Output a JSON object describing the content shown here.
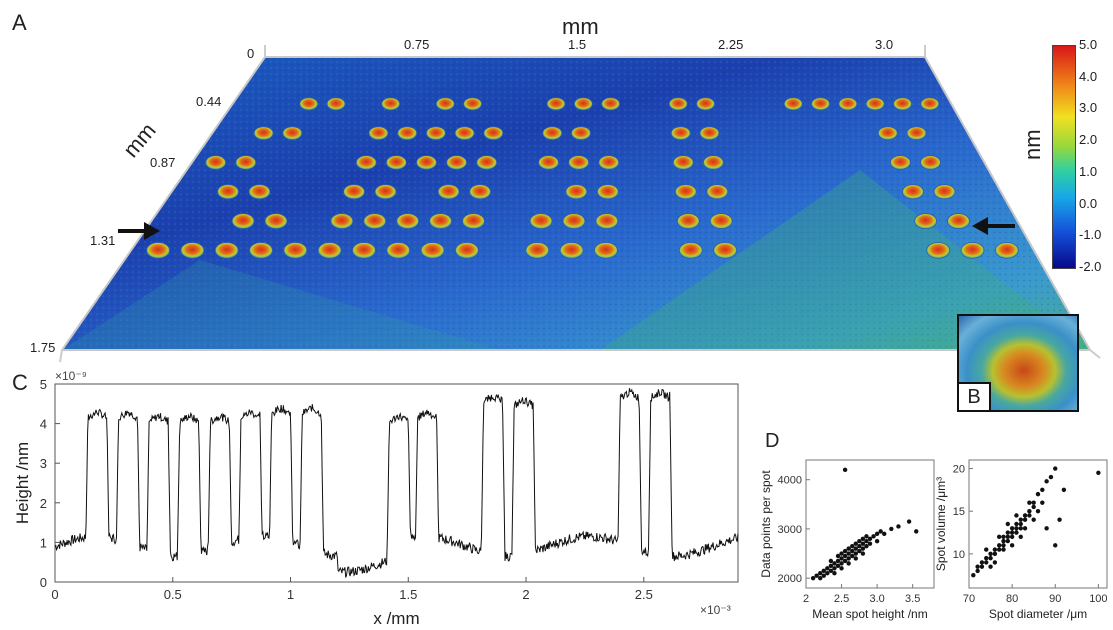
{
  "panels": {
    "A": {
      "letter": "A",
      "x_unit": "mm",
      "y_unit": "mm",
      "x_ticks": [
        "0",
        "0.75",
        "1.5",
        "2.25",
        "3.0"
      ],
      "y_ticks": [
        "0.44",
        "0.87",
        "1.31",
        "1.75"
      ],
      "colorbar": {
        "label": "nm",
        "ticks": [
          "5.0",
          "4.0",
          "3.0",
          "2.0",
          "1.0",
          "0.0",
          "-1.0",
          "-2.0"
        ],
        "range": [
          -2.0,
          5.0
        ],
        "colors": [
          "#08088a",
          "#1450d8",
          "#18a8e8",
          "#30d0a0",
          "#9ad83a",
          "#f0e020",
          "#f08818",
          "#d81818"
        ]
      },
      "arrows": [
        "left-arrow",
        "right-arrow"
      ]
    },
    "B": {
      "letter": "B"
    },
    "C": {
      "letter": "C",
      "y_exponent": "×10⁻⁹",
      "x_exponent": "×10⁻³",
      "xlabel": "x /mm",
      "ylabel": "Height /nm",
      "x_ticks": [
        "0",
        "0.5",
        "1",
        "1.5",
        "2",
        "2.5"
      ],
      "y_ticks": [
        "0",
        "1",
        "2",
        "3",
        "4",
        "5"
      ]
    },
    "D": {
      "letter": "D",
      "left": {
        "xlabel": "Mean spot height /nm",
        "ylabel": "Data points per spot",
        "x_ticks": [
          "2",
          "2.5",
          "3.0",
          "3.5"
        ],
        "y_ticks": [
          "2000",
          "3000",
          "4000"
        ]
      },
      "right": {
        "xlabel": "Spot diameter /μm",
        "ylabel": "Spot volume /μm³",
        "x_ticks": [
          "70",
          "80",
          "90",
          "100"
        ],
        "y_ticks": [
          "10",
          "15",
          "20"
        ]
      }
    }
  },
  "chart_data": [
    {
      "type": "line",
      "title": "",
      "xlabel": "x /mm",
      "ylabel": "Height /nm",
      "xlim": [
        0,
        2.9
      ],
      "ylim": [
        0,
        5
      ],
      "x_scale_label": "×10⁻³",
      "y_scale_label": "×10⁻⁹",
      "grid": false,
      "peaks": [
        {
          "center": 0.18,
          "width": 0.08,
          "height": 4.3
        },
        {
          "center": 0.31,
          "width": 0.08,
          "height": 4.3
        },
        {
          "center": 0.44,
          "width": 0.08,
          "height": 4.2
        },
        {
          "center": 0.57,
          "width": 0.08,
          "height": 4.2
        },
        {
          "center": 0.7,
          "width": 0.08,
          "height": 4.2
        },
        {
          "center": 0.83,
          "width": 0.08,
          "height": 4.3
        },
        {
          "center": 0.96,
          "width": 0.08,
          "height": 4.4
        },
        {
          "center": 1.09,
          "width": 0.08,
          "height": 4.4
        },
        {
          "center": 1.46,
          "width": 0.08,
          "height": 4.2
        },
        {
          "center": 1.58,
          "width": 0.08,
          "height": 4.3
        },
        {
          "center": 1.86,
          "width": 0.08,
          "height": 4.7
        },
        {
          "center": 1.99,
          "width": 0.08,
          "height": 4.6
        },
        {
          "center": 2.44,
          "width": 0.08,
          "height": 4.8
        },
        {
          "center": 2.57,
          "width": 0.08,
          "height": 4.8
        }
      ],
      "baseline": 0.9
    },
    {
      "type": "scatter",
      "xlabel": "Mean spot height /nm",
      "ylabel": "Data points per spot",
      "xlim": [
        2,
        3.8
      ],
      "ylim": [
        1800,
        4400
      ],
      "points": [
        [
          2.1,
          2000
        ],
        [
          2.15,
          2050
        ],
        [
          2.2,
          2000
        ],
        [
          2.2,
          2100
        ],
        [
          2.25,
          2150
        ],
        [
          2.3,
          2100
        ],
        [
          2.3,
          2200
        ],
        [
          2.35,
          2250
        ],
        [
          2.35,
          2150
        ],
        [
          2.4,
          2300
        ],
        [
          2.4,
          2200
        ],
        [
          2.45,
          2350
        ],
        [
          2.45,
          2250
        ],
        [
          2.5,
          2400
        ],
        [
          2.5,
          2300
        ],
        [
          2.5,
          2500
        ],
        [
          2.55,
          2450
        ],
        [
          2.55,
          2350
        ],
        [
          2.6,
          2500
        ],
        [
          2.6,
          2400
        ],
        [
          2.6,
          2600
        ],
        [
          2.65,
          2550
        ],
        [
          2.65,
          2450
        ],
        [
          2.7,
          2600
        ],
        [
          2.7,
          2500
        ],
        [
          2.7,
          2700
        ],
        [
          2.75,
          2650
        ],
        [
          2.75,
          2550
        ],
        [
          2.8,
          2700
        ],
        [
          2.8,
          2600
        ],
        [
          2.8,
          2800
        ],
        [
          2.85,
          2750
        ],
        [
          2.85,
          2650
        ],
        [
          2.9,
          2800
        ],
        [
          2.9,
          2700
        ],
        [
          2.95,
          2850
        ],
        [
          3.0,
          2900
        ],
        [
          3.0,
          2750
        ],
        [
          3.05,
          2950
        ],
        [
          3.1,
          2900
        ],
        [
          3.2,
          3000
        ],
        [
          3.3,
          3050
        ],
        [
          3.45,
          3150
        ],
        [
          3.55,
          2950
        ],
        [
          2.55,
          4200
        ],
        [
          2.25,
          2050
        ],
        [
          2.35,
          2350
        ],
        [
          2.45,
          2450
        ],
        [
          2.55,
          2550
        ],
        [
          2.65,
          2650
        ],
        [
          2.75,
          2750
        ],
        [
          2.85,
          2850
        ],
        [
          2.4,
          2100
        ],
        [
          2.5,
          2200
        ],
        [
          2.6,
          2300
        ],
        [
          2.7,
          2400
        ],
        [
          2.8,
          2500
        ]
      ]
    },
    {
      "type": "scatter",
      "xlabel": "Spot diameter /μm",
      "ylabel": "Spot volume /μm³",
      "xlim": [
        70,
        102
      ],
      "ylim": [
        6,
        21
      ],
      "points": [
        [
          71,
          7.5
        ],
        [
          72,
          8
        ],
        [
          72,
          8.5
        ],
        [
          73,
          8.5
        ],
        [
          73,
          9
        ],
        [
          74,
          9
        ],
        [
          74,
          9.5
        ],
        [
          75,
          9.5
        ],
        [
          75,
          10
        ],
        [
          76,
          10
        ],
        [
          76,
          10.5
        ],
        [
          77,
          10.5
        ],
        [
          77,
          11
        ],
        [
          78,
          11
        ],
        [
          78,
          11.5
        ],
        [
          78,
          12
        ],
        [
          79,
          11.5
        ],
        [
          79,
          12
        ],
        [
          79,
          12.5
        ],
        [
          80,
          12
        ],
        [
          80,
          12.5
        ],
        [
          80,
          13
        ],
        [
          81,
          12.5
        ],
        [
          81,
          13
        ],
        [
          81,
          13.5
        ],
        [
          82,
          13
        ],
        [
          82,
          13.5
        ],
        [
          82,
          14
        ],
        [
          83,
          14
        ],
        [
          83,
          14.5
        ],
        [
          84,
          15
        ],
        [
          84,
          14.5
        ],
        [
          85,
          15.5
        ],
        [
          85,
          16
        ],
        [
          86,
          17
        ],
        [
          87,
          17.5
        ],
        [
          88,
          18.5
        ],
        [
          89,
          19
        ],
        [
          90,
          20
        ],
        [
          90,
          11
        ],
        [
          91,
          14
        ],
        [
          92,
          17.5
        ],
        [
          100,
          19.5
        ],
        [
          76,
          9
        ],
        [
          77,
          12
        ],
        [
          78,
          10.5
        ],
        [
          79,
          13.5
        ],
        [
          80,
          11
        ],
        [
          81,
          14.5
        ],
        [
          82,
          12
        ],
        [
          83,
          13
        ],
        [
          84,
          16
        ],
        [
          74,
          10.5
        ],
        [
          75,
          8.5
        ],
        [
          85,
          14
        ],
        [
          86,
          15
        ],
        [
          87,
          16
        ],
        [
          88,
          13
        ]
      ]
    }
  ]
}
